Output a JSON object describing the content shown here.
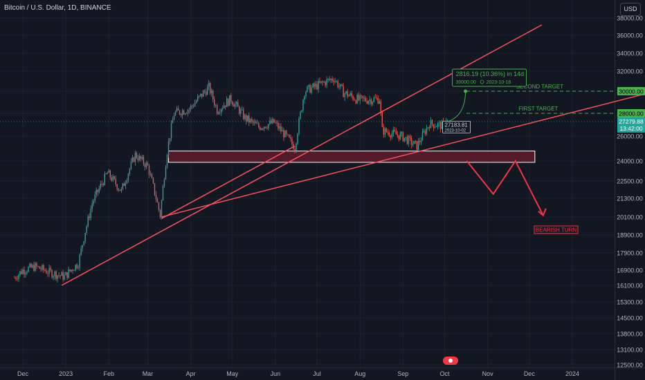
{
  "header": {
    "title": "Bitcoin / U.S. Dollar, 1D, BINANCE",
    "currency": "USD"
  },
  "colors": {
    "bg": "#131722",
    "up": "#26a69a",
    "down": "#ef5350",
    "trend": "#f7525f",
    "target": "#4caf50",
    "zone": "#5b1c2a",
    "zone_border": "#ffffff",
    "grid": "#1e222d",
    "axis_text": "#b2b5be"
  },
  "chart_data": {
    "type": "candlestick",
    "title": "Bitcoin / U.S. Dollar, 1D, BINANCE",
    "y_ticks": [
      "38000.00",
      "36000.00",
      "34000.00",
      "32000.00",
      "30000.00",
      "28000.00",
      "26000.00",
      "24000.00",
      "22500.00",
      "21300.00",
      "20100.00",
      "18900.00",
      "17900.00",
      "16900.00",
      "16100.00",
      "15300.00",
      "14500.00",
      "13800.00",
      "13100.00",
      "12500.00"
    ],
    "x_ticks": [
      "Dec",
      "2023",
      "Feb",
      "Mar",
      "Apr",
      "May",
      "Jun",
      "Jul",
      "Aug",
      "Sep",
      "Oct",
      "Nov",
      "Dec",
      "2024"
    ],
    "price_path": [
      [
        "2022-11-25",
        16500
      ],
      [
        "2022-12-01",
        16900
      ],
      [
        "2022-12-10",
        17100
      ],
      [
        "2022-12-20",
        16800
      ],
      [
        "2022-12-31",
        16550
      ],
      [
        "2023-01-10",
        17300
      ],
      [
        "2023-01-20",
        21000
      ],
      [
        "2023-01-31",
        23100
      ],
      [
        "2023-02-10",
        21800
      ],
      [
        "2023-02-20",
        24500
      ],
      [
        "2023-03-01",
        23600
      ],
      [
        "2023-03-10",
        20200
      ],
      [
        "2023-03-15",
        24800
      ],
      [
        "2023-03-20",
        28000
      ],
      [
        "2023-03-31",
        28400
      ],
      [
        "2023-04-14",
        30400
      ],
      [
        "2023-04-20",
        28300
      ],
      [
        "2023-04-30",
        29300
      ],
      [
        "2023-05-10",
        27600
      ],
      [
        "2023-05-20",
        26800
      ],
      [
        "2023-05-31",
        27200
      ],
      [
        "2023-06-10",
        25800
      ],
      [
        "2023-06-15",
        25100
      ],
      [
        "2023-06-22",
        30000
      ],
      [
        "2023-06-30",
        30500
      ],
      [
        "2023-07-13",
        31300
      ],
      [
        "2023-07-20",
        29900
      ],
      [
        "2023-07-31",
        29200
      ],
      [
        "2023-08-15",
        29300
      ],
      [
        "2023-08-17",
        26500
      ],
      [
        "2023-08-31",
        26000
      ],
      [
        "2023-09-11",
        25200
      ],
      [
        "2023-09-20",
        27100
      ],
      [
        "2023-09-30",
        26900
      ],
      [
        "2023-10-02",
        27500
      ],
      [
        "2023-10-03",
        27279.88
      ]
    ],
    "current_price": "27279.88",
    "countdown": "13:42:00",
    "hline_labels": [
      {
        "text": "SECOND TARGET",
        "price": "30000.00"
      },
      {
        "text": "FIRST TARGET",
        "price": "28000.00"
      }
    ],
    "projection": {
      "text": "2816.19 (10.36%) in 14d",
      "sub_price": "30000.00",
      "sub_date": "2023-10-16"
    },
    "entry": {
      "price": "27183.81",
      "date": "2023-10-02"
    },
    "zone": {
      "from": 23900,
      "to": 24800,
      "start": "2023-03-16",
      "end": "2023-12-05"
    },
    "trendlines": [
      {
        "from": [
          "2022-12-29",
          16100
        ],
        "to": [
          "2023-12-10",
          38800
        ]
      },
      {
        "from": [
          "2023-03-11",
          20100
        ],
        "to": [
          "2024-03-01",
          30000
        ]
      },
      {
        "from": [
          "2023-03-11",
          20000
        ],
        "to": [
          "2023-06-15",
          25200
        ]
      }
    ],
    "bearish_path": [
      [
        "2023-10-17",
        24000
      ],
      [
        "2023-11-05",
        21600
      ],
      [
        "2023-11-21",
        24000
      ],
      [
        "2023-12-11",
        20200
      ]
    ],
    "annotation": "BEARISH TURN"
  }
}
